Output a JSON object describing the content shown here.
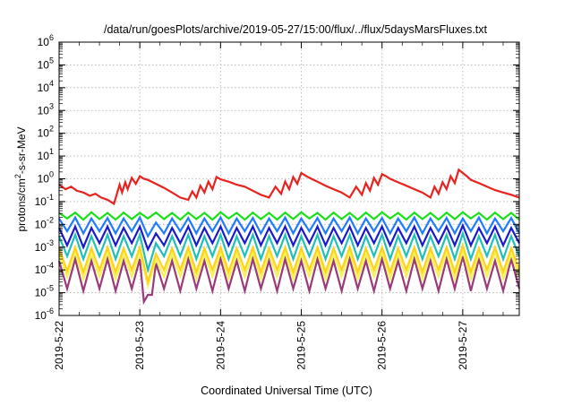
{
  "chart_data": {
    "type": "line",
    "title": "/data/run/goesPlots/archive/2019-05-27/15:00/flux/../flux/5daysMarsFluxes.txt",
    "xlabel": "Coordinated Universal Time (UTC)",
    "ylabel": {
      "pre": "protons/cm",
      "sup": "2",
      "post": "-s-sr-MeV"
    },
    "xlim": [
      0,
      5.7
    ],
    "ylim": [
      -6,
      6
    ],
    "yscale": "log",
    "grid": true,
    "legend": "none",
    "x_ticks": [
      {
        "x": 0,
        "label": "2019-5-22"
      },
      {
        "x": 1,
        "label": "2019-5-23"
      },
      {
        "x": 2,
        "label": "2019-5-24"
      },
      {
        "x": 3,
        "label": "2019-5-25"
      },
      {
        "x": 4,
        "label": "2019-5-26"
      },
      {
        "x": 5,
        "label": "2019-5-27"
      }
    ],
    "y_ticks": [
      {
        "exp": -6,
        "label": "-6"
      },
      {
        "exp": -5,
        "label": "-5"
      },
      {
        "exp": -4,
        "label": "-4"
      },
      {
        "exp": -3,
        "label": "-3"
      },
      {
        "exp": -2,
        "label": "-2"
      },
      {
        "exp": -1,
        "label": "-1"
      },
      {
        "exp": 0,
        "label": "0"
      },
      {
        "exp": 1,
        "label": "1"
      },
      {
        "exp": 2,
        "label": "2"
      },
      {
        "exp": 3,
        "label": "3"
      },
      {
        "exp": 4,
        "label": "4"
      },
      {
        "exp": 5,
        "label": "5"
      },
      {
        "exp": 6,
        "label": "6"
      }
    ],
    "series": [
      {
        "color": "#e8231f",
        "x": [
          0,
          0.08,
          0.15,
          0.22,
          0.3,
          0.38,
          0.45,
          0.52,
          0.6,
          0.68,
          0.75,
          0.78,
          0.82,
          0.85,
          0.9,
          0.95,
          1.0,
          1.05,
          1.1,
          1.2,
          1.3,
          1.4,
          1.5,
          1.6,
          1.65,
          1.7,
          1.75,
          1.8,
          1.85,
          1.9,
          1.95,
          2.0,
          2.1,
          2.2,
          2.3,
          2.4,
          2.5,
          2.6,
          2.68,
          2.75,
          2.8,
          2.85,
          2.9,
          2.95,
          3.0,
          3.05,
          3.1,
          3.2,
          3.3,
          3.4,
          3.5,
          3.6,
          3.68,
          3.75,
          3.8,
          3.85,
          3.9,
          3.95,
          4.0,
          4.05,
          4.1,
          4.2,
          4.3,
          4.4,
          4.5,
          4.6,
          4.65,
          4.7,
          4.75,
          4.8,
          4.85,
          4.9,
          4.95,
          5.0,
          5.05,
          5.1,
          5.2,
          5.3,
          5.4,
          5.5,
          5.6,
          5.7
        ],
        "y": [
          0.55,
          0.35,
          0.45,
          0.3,
          0.25,
          0.18,
          0.22,
          0.15,
          0.12,
          0.08,
          0.55,
          0.25,
          0.7,
          0.35,
          1.1,
          0.6,
          1.3,
          1.0,
          0.9,
          0.6,
          0.4,
          0.25,
          0.15,
          0.12,
          0.28,
          0.15,
          0.5,
          0.25,
          0.75,
          0.35,
          1.2,
          0.95,
          0.75,
          0.55,
          0.45,
          0.3,
          0.2,
          0.15,
          0.45,
          0.22,
          0.75,
          0.35,
          1.2,
          0.6,
          1.8,
          1.4,
          1.1,
          0.75,
          0.5,
          0.35,
          0.25,
          0.15,
          0.45,
          0.2,
          0.65,
          0.3,
          1.1,
          0.55,
          1.6,
          1.3,
          1.0,
          0.7,
          0.5,
          0.35,
          0.25,
          0.15,
          0.45,
          0.22,
          0.7,
          0.35,
          1.3,
          0.65,
          2.5,
          1.8,
          1.3,
          0.9,
          0.65,
          0.45,
          0.32,
          0.25,
          0.2,
          0.15
        ]
      },
      {
        "color": "#19e019",
        "x": [
          0,
          0.1,
          0.2,
          0.3,
          0.4,
          0.5,
          0.6,
          0.7,
          0.8,
          0.9,
          1.0,
          1.1,
          1.2,
          1.3,
          1.4,
          1.5,
          1.6,
          1.7,
          1.8,
          1.9,
          2.0,
          2.1,
          2.2,
          2.3,
          2.4,
          2.5,
          2.6,
          2.7,
          2.8,
          2.9,
          3.0,
          3.1,
          3.2,
          3.3,
          3.4,
          3.5,
          3.6,
          3.7,
          3.8,
          3.9,
          4.0,
          4.1,
          4.2,
          4.3,
          4.4,
          4.5,
          4.6,
          4.7,
          4.8,
          4.9,
          5.0,
          5.1,
          5.2,
          5.3,
          5.4,
          5.5,
          5.6,
          5.7
        ],
        "y": [
          0.032,
          0.018,
          0.033,
          0.016,
          0.034,
          0.017,
          0.032,
          0.016,
          0.033,
          0.017,
          0.032,
          0.018,
          0.033,
          0.017,
          0.032,
          0.016,
          0.033,
          0.017,
          0.032,
          0.016,
          0.034,
          0.018,
          0.032,
          0.016,
          0.033,
          0.017,
          0.032,
          0.016,
          0.033,
          0.017,
          0.034,
          0.018,
          0.032,
          0.016,
          0.033,
          0.017,
          0.032,
          0.016,
          0.033,
          0.017,
          0.034,
          0.018,
          0.032,
          0.016,
          0.033,
          0.017,
          0.032,
          0.016,
          0.033,
          0.017,
          0.034,
          0.018,
          0.032,
          0.016,
          0.033,
          0.017,
          0.032,
          0.016
        ]
      },
      {
        "color": "#1f7bff",
        "x": [
          0,
          0.1,
          0.2,
          0.3,
          0.4,
          0.5,
          0.6,
          0.7,
          0.8,
          0.9,
          1.0,
          1.1,
          1.2,
          1.3,
          1.4,
          1.5,
          1.6,
          1.7,
          1.8,
          1.9,
          2.0,
          2.1,
          2.2,
          2.3,
          2.4,
          2.5,
          2.6,
          2.7,
          2.8,
          2.9,
          3.0,
          3.1,
          3.2,
          3.3,
          3.4,
          3.5,
          3.6,
          3.7,
          3.8,
          3.9,
          4.0,
          4.1,
          4.2,
          4.3,
          4.4,
          4.5,
          4.6,
          4.7,
          4.8,
          4.9,
          5.0,
          5.1,
          5.2,
          5.3,
          5.4,
          5.5,
          5.6,
          5.7
        ],
        "y": [
          0.018,
          0.005,
          0.02,
          0.004,
          0.018,
          0.005,
          0.019,
          0.004,
          0.018,
          0.005,
          0.02,
          0.003,
          0.012,
          0.004,
          0.018,
          0.005,
          0.019,
          0.004,
          0.018,
          0.005,
          0.02,
          0.004,
          0.018,
          0.005,
          0.019,
          0.004,
          0.018,
          0.005,
          0.02,
          0.004,
          0.018,
          0.005,
          0.019,
          0.004,
          0.018,
          0.005,
          0.02,
          0.004,
          0.018,
          0.005,
          0.019,
          0.004,
          0.018,
          0.005,
          0.02,
          0.004,
          0.018,
          0.005,
          0.019,
          0.004,
          0.018,
          0.005,
          0.02,
          0.004,
          0.018,
          0.005,
          0.019,
          0.004
        ]
      },
      {
        "color": "#1a1acc",
        "x": [
          0,
          0.1,
          0.2,
          0.3,
          0.4,
          0.5,
          0.6,
          0.7,
          0.8,
          0.9,
          1.0,
          1.1,
          1.2,
          1.3,
          1.4,
          1.5,
          1.6,
          1.7,
          1.8,
          1.9,
          2.0,
          2.1,
          2.2,
          2.3,
          2.4,
          2.5,
          2.6,
          2.7,
          2.8,
          2.9,
          3.0,
          3.1,
          3.2,
          3.3,
          3.4,
          3.5,
          3.6,
          3.7,
          3.8,
          3.9,
          4.0,
          4.1,
          4.2,
          4.3,
          4.4,
          4.5,
          4.6,
          4.7,
          4.8,
          4.9,
          5.0,
          5.1,
          5.2,
          5.3,
          5.4,
          5.5,
          5.6,
          5.7
        ],
        "y": [
          0.007,
          0.0012,
          0.008,
          0.001,
          0.007,
          0.0015,
          0.008,
          0.0012,
          0.007,
          0.0015,
          0.008,
          0.0008,
          0.004,
          0.0012,
          0.007,
          0.0015,
          0.008,
          0.0012,
          0.007,
          0.0015,
          0.008,
          0.0012,
          0.007,
          0.0015,
          0.008,
          0.0012,
          0.007,
          0.0015,
          0.008,
          0.0012,
          0.007,
          0.0015,
          0.008,
          0.0012,
          0.007,
          0.0015,
          0.008,
          0.0012,
          0.007,
          0.0015,
          0.008,
          0.0012,
          0.007,
          0.0015,
          0.008,
          0.0012,
          0.007,
          0.0015,
          0.008,
          0.0012,
          0.009,
          0.0012,
          0.007,
          0.0015,
          0.008,
          0.0012,
          0.007,
          0.0015
        ]
      },
      {
        "color": "#20c0b8",
        "x": [
          0,
          0.1,
          0.2,
          0.3,
          0.4,
          0.5,
          0.6,
          0.7,
          0.8,
          0.9,
          1.0,
          1.1,
          1.2,
          1.3,
          1.4,
          1.5,
          1.6,
          1.7,
          1.8,
          1.9,
          2.0,
          2.1,
          2.2,
          2.3,
          2.4,
          2.5,
          2.6,
          2.7,
          2.8,
          2.9,
          3.0,
          3.1,
          3.2,
          3.3,
          3.4,
          3.5,
          3.6,
          3.7,
          3.8,
          3.9,
          4.0,
          4.1,
          4.2,
          4.3,
          4.4,
          4.5,
          4.6,
          4.7,
          4.8,
          4.9,
          5.0,
          5.1,
          5.2,
          5.3,
          5.4,
          5.5,
          5.6,
          5.7
        ],
        "y": [
          0.003,
          0.0004,
          0.0035,
          0.0003,
          0.003,
          0.0004,
          0.0035,
          0.0003,
          0.003,
          0.0004,
          0.0035,
          0.0001,
          0.0015,
          0.0004,
          0.003,
          0.0004,
          0.0035,
          0.0003,
          0.003,
          0.0004,
          0.0035,
          0.0003,
          0.003,
          0.0004,
          0.0035,
          0.0003,
          0.003,
          0.0004,
          0.0035,
          0.0003,
          0.003,
          0.0004,
          0.0035,
          0.0003,
          0.003,
          0.0004,
          0.0035,
          0.0003,
          0.003,
          0.0004,
          0.0035,
          0.0003,
          0.003,
          0.0004,
          0.0035,
          0.0003,
          0.003,
          0.0004,
          0.0035,
          0.0003,
          0.004,
          0.0003,
          0.003,
          0.0004,
          0.0035,
          0.0003,
          0.003,
          0.0004
        ]
      },
      {
        "color": "#ffd21a",
        "x": [
          0,
          0.1,
          0.2,
          0.3,
          0.4,
          0.5,
          0.6,
          0.7,
          0.8,
          0.9,
          1.0,
          1.1,
          1.2,
          1.3,
          1.4,
          1.5,
          1.6,
          1.7,
          1.8,
          1.9,
          2.0,
          2.1,
          2.2,
          2.3,
          2.4,
          2.5,
          2.6,
          2.7,
          2.8,
          2.9,
          3.0,
          3.1,
          3.2,
          3.3,
          3.4,
          3.5,
          3.6,
          3.7,
          3.8,
          3.9,
          4.0,
          4.1,
          4.2,
          4.3,
          4.4,
          4.5,
          4.6,
          4.7,
          4.8,
          4.9,
          5.0,
          5.1,
          5.2,
          5.3,
          5.4,
          5.5,
          5.6,
          5.7
        ],
        "y": [
          0.0009,
          9e-05,
          0.001,
          8e-05,
          0.0009,
          0.0001,
          0.001,
          8e-05,
          0.0009,
          0.0001,
          0.001,
          3e-05,
          0.0005,
          0.0001,
          0.0009,
          0.0001,
          0.001,
          8e-05,
          0.0009,
          0.0001,
          0.001,
          8e-05,
          0.0009,
          0.0001,
          0.001,
          8e-05,
          0.0009,
          0.0001,
          0.001,
          8e-05,
          0.0009,
          0.0001,
          0.001,
          8e-05,
          0.0009,
          0.0001,
          0.001,
          8e-05,
          0.0009,
          0.0001,
          0.001,
          8e-05,
          0.0009,
          0.0001,
          0.001,
          8e-05,
          0.0009,
          0.0001,
          0.001,
          8e-05,
          0.0012,
          8e-05,
          0.0009,
          0.0001,
          0.001,
          8e-05,
          0.0009,
          0.0001
        ]
      },
      {
        "color": "#f2f25a",
        "x": [
          0,
          0.1,
          0.2,
          0.3,
          0.4,
          0.5,
          0.6,
          0.7,
          0.8,
          0.9,
          1.0,
          1.1,
          1.2,
          1.3,
          1.4,
          1.5,
          1.6,
          1.7,
          1.8,
          1.9,
          2.0,
          2.1,
          2.2,
          2.3,
          2.4,
          2.5,
          2.6,
          2.7,
          2.8,
          2.9,
          3.0,
          3.1,
          3.2,
          3.3,
          3.4,
          3.5,
          3.6,
          3.7,
          3.8,
          3.9,
          4.0,
          4.1,
          4.2,
          4.3,
          4.4,
          4.5,
          4.6,
          4.7,
          4.8,
          4.9,
          5.0,
          5.1,
          5.2,
          5.3,
          5.4,
          5.5,
          5.6,
          5.7
        ],
        "y": [
          0.0005,
          5e-05,
          0.0006,
          4e-05,
          0.0005,
          5e-05,
          0.0006,
          4e-05,
          0.0005,
          5e-05,
          0.0006,
          2e-05,
          0.0003,
          5e-05,
          0.0005,
          5e-05,
          0.0006,
          4e-05,
          0.0005,
          5e-05,
          0.0006,
          4e-05,
          0.0005,
          5e-05,
          0.0006,
          4e-05,
          0.0005,
          5e-05,
          0.0006,
          4e-05,
          0.0005,
          5e-05,
          0.0006,
          4e-05,
          0.0005,
          5e-05,
          0.0006,
          4e-05,
          0.0005,
          5e-05,
          0.0006,
          4e-05,
          0.0005,
          5e-05,
          0.0006,
          4e-05,
          0.0005,
          5e-05,
          0.0006,
          4e-05,
          0.0007,
          4e-05,
          0.0005,
          5e-05,
          0.0006,
          4e-05,
          0.0005,
          5e-05
        ]
      },
      {
        "color": "#9a3a7a",
        "x": [
          0,
          0.1,
          0.2,
          0.3,
          0.4,
          0.5,
          0.6,
          0.7,
          0.8,
          0.9,
          1.0,
          1.05,
          1.1,
          1.15,
          1.2,
          1.3,
          1.4,
          1.5,
          1.6,
          1.7,
          1.8,
          1.9,
          2.0,
          2.1,
          2.2,
          2.3,
          2.4,
          2.5,
          2.6,
          2.7,
          2.8,
          2.9,
          3.0,
          3.1,
          3.2,
          3.3,
          3.4,
          3.5,
          3.6,
          3.7,
          3.8,
          3.9,
          4.0,
          4.1,
          4.2,
          4.3,
          4.4,
          4.5,
          4.6,
          4.7,
          4.8,
          4.9,
          5.0,
          5.1,
          5.2,
          5.3,
          5.4,
          5.5,
          5.6,
          5.7
        ],
        "y": [
          0.00025,
          1.5e-05,
          0.0003,
          1.2e-05,
          0.00025,
          1.5e-05,
          0.0003,
          1.2e-05,
          0.00025,
          1.5e-05,
          0.0003,
          4e-06,
          8e-06,
          8e-06,
          0.0002,
          1.5e-05,
          0.00025,
          1.2e-05,
          0.0003,
          1.5e-05,
          0.00025,
          1.2e-05,
          0.0003,
          1.5e-05,
          0.00025,
          1.2e-05,
          0.0003,
          1.5e-05,
          0.00025,
          1.2e-05,
          0.0003,
          1.5e-05,
          0.00025,
          1.2e-05,
          0.0003,
          1.5e-05,
          0.00025,
          1.2e-05,
          0.0003,
          1.5e-05,
          0.00025,
          1.2e-05,
          0.0003,
          1.5e-05,
          0.00025,
          1.2e-05,
          0.0003,
          1.5e-05,
          0.00025,
          1.2e-05,
          0.0003,
          1.5e-05,
          0.0004,
          1.2e-05,
          0.0003,
          1.5e-05,
          0.00025,
          1.2e-05,
          0.0003,
          1.5e-05
        ]
      }
    ]
  }
}
